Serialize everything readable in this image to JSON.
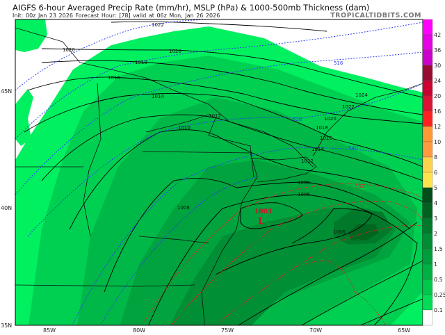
{
  "header": {
    "title": "AIGFS 6-hour Averaged Precip Rate (mm/hr), MSLP (hPa) & 1000-500mb Thickness (dam)",
    "subtitle": "Init: 00z Jan 23 2026   Forecast Hour: [78]   valid at 06z Mon, Jan 26 2026",
    "brand": "TROPICALTIDBITS.COM"
  },
  "map": {
    "lon_labels": [
      "85W",
      "80W",
      "75W",
      "70W",
      "65W"
    ],
    "lat_labels": [
      "45N",
      "40N",
      "35N"
    ],
    "low": {
      "pressure": "1003",
      "symbol": "L",
      "color": "#d0102a"
    },
    "isobar_labels": [
      "1022",
      "1020",
      "1020",
      "1018",
      "1016",
      "1014",
      "1012",
      "1012",
      "1010",
      "1024",
      "1022",
      "1020",
      "1018",
      "1016",
      "1014",
      "1012",
      "1008",
      "1008",
      "1006",
      "1006"
    ],
    "thickness_labels": [
      "516",
      "528",
      "540",
      "552"
    ],
    "colors": {
      "thickness_cold": "#2a3cf0",
      "thickness_warm": "#e02020",
      "isobar": "#000000"
    }
  },
  "colorbar": {
    "labels": [
      "42",
      "36",
      "30",
      "24",
      "20",
      "16",
      "12",
      "10",
      "8",
      "6",
      "5",
      "4",
      "3",
      "2",
      "1.5",
      "1",
      "0.5",
      "0.25",
      "0.1"
    ],
    "colors": [
      "#ff00ff",
      "#e600e6",
      "#cc00cc",
      "#990a33",
      "#cc0033",
      "#dd1133",
      "#ff2222",
      "#ff9933",
      "#ff9a40",
      "#ffd24d",
      "#ffe34d",
      "#004d1a",
      "#00611f",
      "#007a2a",
      "#008c33",
      "#009e3a",
      "#00b043",
      "#00c84a",
      "#00dd55",
      "#ffffff"
    ]
  }
}
